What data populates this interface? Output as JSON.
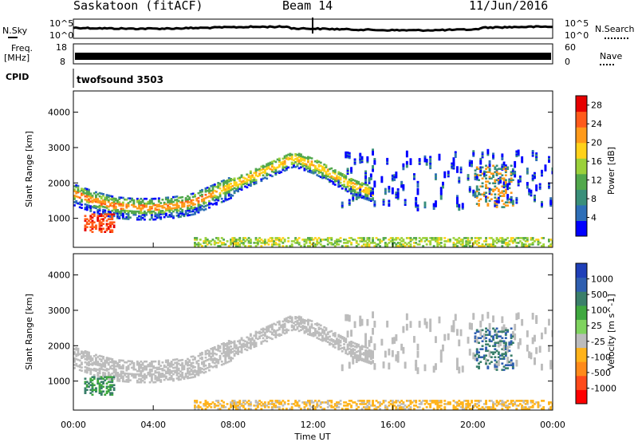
{
  "header": {
    "station": "Saskatoon (fitACF)",
    "beam": "Beam 14",
    "date": "11/Jun/2016"
  },
  "strips": {
    "nsky_label": "N.Sky",
    "freq_label_line1": "Freq.",
    "freq_label_line2": "[MHz]",
    "cpid_label": "CPID",
    "nsearch_label": "N.Search",
    "nave_label": "Nave",
    "cpid_value": "twofsound 3503",
    "noise_ticks_left": [
      "10^5",
      "10^0"
    ],
    "noise_ticks_right": [
      "10^5",
      "10^0"
    ],
    "freq_ticks": [
      "18",
      "8"
    ],
    "nave_ticks": [
      "60",
      "0"
    ]
  },
  "axes": {
    "ylabel": "Slant Range [km]",
    "xlabel": "Time UT",
    "yticks": [
      "4000",
      "3000",
      "2000",
      "1000"
    ],
    "xticks": [
      "00:00",
      "04:00",
      "08:00",
      "12:00",
      "16:00",
      "20:00",
      "00:00"
    ]
  },
  "colors": {
    "power": [
      "#0000ff",
      "#2e6fb8",
      "#3a8f7a",
      "#52a84c",
      "#9bd13a",
      "#ffd21a",
      "#ff9a1a",
      "#ff5a1a",
      "#e60000"
    ],
    "velocity": [
      "#1f3fb8",
      "#2f5fb0",
      "#3a7f6a",
      "#3fa83f",
      "#7fd35f",
      "#bcbcbc",
      "#ffb31a",
      "#ff8a1a",
      "#ff4a1a",
      "#ff0000"
    ]
  },
  "chart_data": [
    {
      "type": "heatmap",
      "title": "Power",
      "xlabel": "Time UT",
      "ylabel": "Slant Range [km]",
      "xlim": [
        "00:00",
        "24:00"
      ],
      "ylim": [
        180,
        4600
      ],
      "colorbar_label": "Power [dB]",
      "colorbar_ticks": [
        28,
        24,
        20,
        16,
        12,
        8,
        4
      ],
      "colorbar_range": [
        0,
        30
      ],
      "features": [
        {
          "name": "main arc",
          "range_km_by_hour": [
            [
              0,
              1700
            ],
            [
              1,
              1500
            ],
            [
              2,
              1350
            ],
            [
              3,
              1300
            ],
            [
              4,
              1300
            ],
            [
              5,
              1350
            ],
            [
              6,
              1450
            ],
            [
              7,
              1700
            ],
            [
              8,
              1950
            ],
            [
              9,
              2200
            ],
            [
              10,
              2450
            ],
            [
              11,
              2700
            ],
            [
              12,
              2500
            ],
            [
              13,
              2200
            ],
            [
              14,
              1900
            ],
            [
              15,
              1700
            ]
          ],
          "power_db": 18
        },
        {
          "name": "ground scatter",
          "range_km": [
            200,
            500
          ],
          "time_hours": [
            6,
            24
          ],
          "power_db": 14
        }
      ]
    },
    {
      "type": "heatmap",
      "title": "Velocity",
      "xlabel": "Time UT",
      "ylabel": "Slant Range [km]",
      "xlim": [
        "00:00",
        "24:00"
      ],
      "ylim": [
        180,
        4600
      ],
      "colorbar_label": "Velocity [m s^-1]",
      "colorbar_ticks": [
        1000,
        500,
        100,
        25,
        -25,
        -100,
        -500,
        -1000
      ],
      "features": [
        {
          "name": "main arc",
          "velocity_ms": 0
        },
        {
          "name": "late evening echoes",
          "time_hours": [
            20,
            22
          ],
          "range_km": [
            1300,
            2500
          ],
          "velocity_ms": 300
        }
      ]
    }
  ]
}
